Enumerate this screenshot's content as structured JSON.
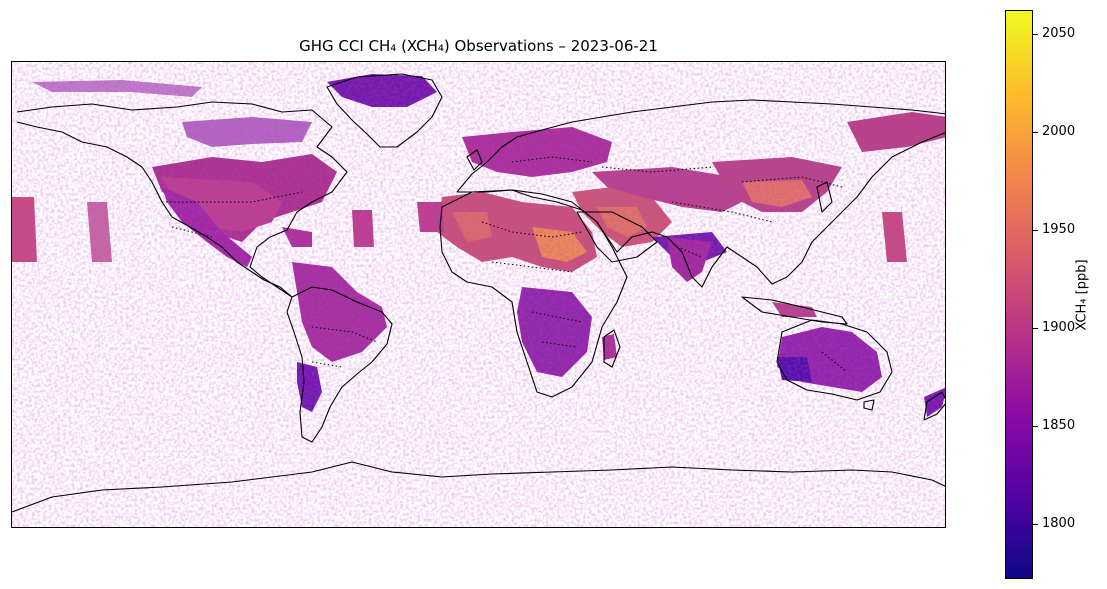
{
  "title": "GHG CCI CH₄ (XCH₄) Observations – 2023-06-21",
  "colorbar": {
    "label": "XCH₄ [ppb]",
    "min": 1772,
    "max": 2062,
    "ticks": [
      "1800",
      "1850",
      "1900",
      "1950",
      "2000",
      "2050"
    ],
    "colormap": "plasma",
    "colors": [
      "#0d0887",
      "#5302a3",
      "#8b0aa5",
      "#b83289",
      "#db5c68",
      "#f48849",
      "#febd2a",
      "#f0f921"
    ]
  },
  "map": {
    "projection": "plate-carree",
    "coastline_color": "#000000",
    "border_style": "dotted"
  }
}
